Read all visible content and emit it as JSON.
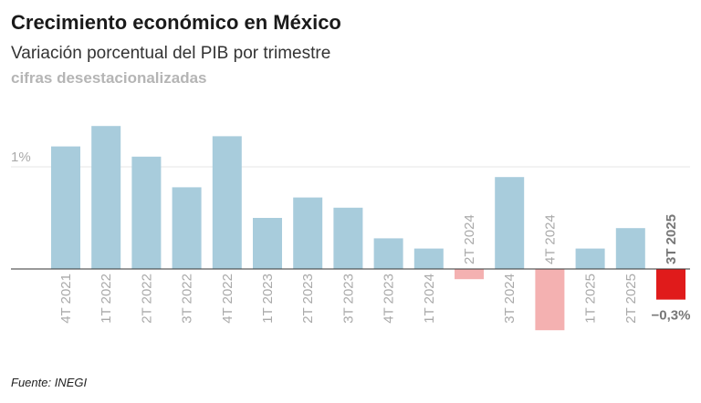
{
  "header": {
    "title": "Crecimiento económico en México",
    "subtitle": "Variación porcentual del PIB por trimestre",
    "note": "cifras desestacionalizadas"
  },
  "footer": {
    "source": "Fuente: INEGI"
  },
  "colors": {
    "positive": "#a8ccdc",
    "negative": "#f4b1b1",
    "highlight": "#e01b1b"
  },
  "chart_data": {
    "type": "bar",
    "categories": [
      "4T 2021",
      "1T 2022",
      "2T 2022",
      "3T 2022",
      "4T 2022",
      "1T 2023",
      "2T 2023",
      "3T 2023",
      "4T 2023",
      "1T 2024",
      "2T 2024",
      "3T 2024",
      "4T 2024",
      "1T 2025",
      "2T 2025",
      "3T 2025"
    ],
    "values": [
      1.2,
      1.4,
      1.1,
      0.8,
      1.3,
      0.5,
      0.7,
      0.6,
      0.3,
      0.2,
      -0.1,
      0.9,
      -0.6,
      0.2,
      0.4,
      -0.3
    ],
    "ytick_label": "1%",
    "ylim": [
      -0.6,
      1.4
    ],
    "highlight_index": 15,
    "highlight_label": "−0,3%",
    "grid": true
  }
}
